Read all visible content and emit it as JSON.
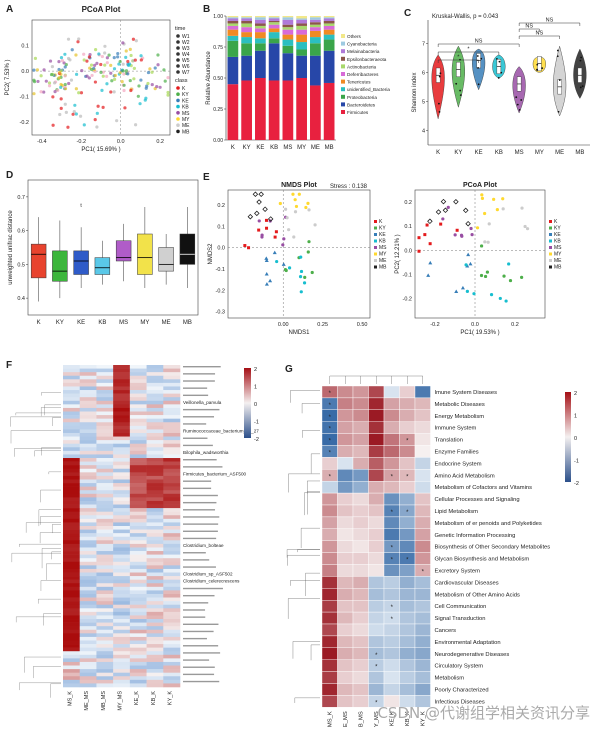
{
  "figure": {
    "watermark": "CSDN @代谢组学相关资讯分享"
  },
  "panel_labels": {
    "a": "A",
    "b": "B",
    "c": "C",
    "d": "D",
    "e": "E",
    "f": "F",
    "g": "G"
  },
  "colors": {
    "K": "#e41a1c",
    "KY": "#4daf4a",
    "KE": "#377eb8",
    "KB": "#17becf",
    "MS": "#984ea3",
    "MY": "#ffd92f",
    "ME": "#cccccc",
    "MB": "#222222"
  },
  "chart_data": [
    {
      "id": "A",
      "type": "scatter",
      "title": "PCoA Plot",
      "xlabel": "PC1( 15.69% )",
      "ylabel": "PC2( 7.53% )",
      "xlim": [
        -0.45,
        0.25
      ],
      "ylim": [
        -0.25,
        0.2
      ],
      "xticks": [
        "-0.4",
        "-0.2",
        "0.0",
        "0.2"
      ],
      "yticks": [
        "0.1",
        "0.0",
        "-0.1",
        "-0.2"
      ],
      "legend_time_title": "time",
      "legend_time": [
        "W1",
        "W2",
        "W3",
        "W4",
        "W5",
        "W6",
        "W7"
      ],
      "legend_class_title": "class",
      "legend_class": [
        "K",
        "KY",
        "KE",
        "KB",
        "MS",
        "MY",
        "ME",
        "MB"
      ]
    },
    {
      "id": "B",
      "type": "bar",
      "ylabel": "Relative Abundance",
      "categories": [
        "K",
        "KY",
        "KE",
        "KB",
        "MS",
        "MY",
        "ME",
        "MB"
      ],
      "yticks": [
        "0.00",
        "0.25",
        "0.50",
        "0.75",
        "1.00"
      ],
      "series": [
        {
          "name": "Firmicutes",
          "color": "#e8213f",
          "values": [
            0.45,
            0.48,
            0.5,
            0.48,
            0.48,
            0.5,
            0.44,
            0.46
          ]
        },
        {
          "name": "Bacteroidetes",
          "color": "#2747a8",
          "values": [
            0.22,
            0.2,
            0.22,
            0.3,
            0.22,
            0.18,
            0.24,
            0.26
          ]
        },
        {
          "name": "Proteobacteria",
          "color": "#3aa54a",
          "values": [
            0.13,
            0.1,
            0.06,
            0.04,
            0.06,
            0.05,
            0.1,
            0.09
          ]
        },
        {
          "name": "unidentified_Bacteria",
          "color": "#2bbfc0",
          "values": [
            0.04,
            0.05,
            0.04,
            0.05,
            0.05,
            0.06,
            0.05,
            0.04
          ]
        },
        {
          "name": "Tenericutes",
          "color": "#f08a24",
          "values": [
            0.05,
            0.04,
            0.05,
            0.03,
            0.04,
            0.06,
            0.05,
            0.04
          ]
        },
        {
          "name": "Deferribacteres",
          "color": "#d86bd8",
          "values": [
            0.03,
            0.04,
            0.03,
            0.03,
            0.04,
            0.04,
            0.03,
            0.03
          ]
        },
        {
          "name": "Actinobacteria",
          "color": "#a8d86b",
          "values": [
            0.02,
            0.03,
            0.02,
            0.02,
            0.02,
            0.03,
            0.02,
            0.02
          ]
        },
        {
          "name": "Epsilonbacteraeota",
          "color": "#8c564b",
          "values": [
            0.02,
            0.02,
            0.02,
            0.01,
            0.02,
            0.02,
            0.02,
            0.02
          ]
        },
        {
          "name": "Melainabacteria",
          "color": "#b07ad8",
          "values": [
            0.02,
            0.02,
            0.03,
            0.02,
            0.04,
            0.03,
            0.02,
            0.02
          ]
        },
        {
          "name": "Cyanobacteria",
          "color": "#9ecae1",
          "values": [
            0.01,
            0.01,
            0.02,
            0.01,
            0.02,
            0.01,
            0.02,
            0.01
          ]
        },
        {
          "name": "Others",
          "color": "#f2e88a",
          "values": [
            0.01,
            0.01,
            0.01,
            0.01,
            0.01,
            0.02,
            0.01,
            0.01
          ]
        }
      ],
      "legend_order": [
        "Others",
        "Cyanobacteria",
        "Melainabacteria",
        "Epsilonbacteraeota",
        "Actinobacteria",
        "Deferribacteres",
        "Tenericutes",
        "unidentified_Bacteria",
        "Proteobacteria",
        "Bacteroidetes",
        "Firmicutes"
      ]
    },
    {
      "id": "C",
      "type": "violin",
      "title": "Kruskal-Wallis, p = 0.043",
      "ylabel": "Shannon index",
      "categories": [
        "K",
        "KY",
        "KE",
        "KB",
        "MS",
        "MY",
        "ME",
        "MB"
      ],
      "yticks": [
        "4",
        "5",
        "6",
        "7"
      ],
      "ylim": [
        3.5,
        7.8
      ],
      "medians": [
        5.9,
        6.1,
        6.4,
        6.2,
        5.6,
        6.3,
        5.5,
        5.9
      ],
      "spread": [
        [
          4.4,
          6.6
        ],
        [
          4.8,
          6.9
        ],
        [
          5.4,
          6.8
        ],
        [
          5.8,
          6.6
        ],
        [
          4.6,
          6.2
        ],
        [
          6.0,
          6.5
        ],
        [
          4.5,
          6.9
        ],
        [
          5.1,
          6.8
        ]
      ],
      "significance": [
        {
          "from": "K",
          "to": "MS",
          "label": "NS"
        },
        {
          "from": "K",
          "to": "KB",
          "label": "*"
        },
        {
          "from": "K",
          "to": "KE",
          "label": "*"
        },
        {
          "from": "MS",
          "to": "ME",
          "label": "NS"
        },
        {
          "from": "MS",
          "to": "MY",
          "label": "NS"
        },
        {
          "from": "MS",
          "to": "MB",
          "label": "NS"
        }
      ]
    },
    {
      "id": "D",
      "type": "box",
      "ylabel": "unweighted unifrac distance",
      "categories": [
        "K",
        "KY",
        "KE",
        "KB",
        "MS",
        "MY",
        "ME",
        "MB"
      ],
      "yticks": [
        "0.4",
        "0.5",
        "0.6",
        "0.7"
      ],
      "ylim": [
        0.35,
        0.75
      ],
      "boxes": [
        {
          "min": 0.39,
          "q1": 0.46,
          "median": 0.53,
          "q3": 0.56,
          "max": 0.64
        },
        {
          "min": 0.4,
          "q1": 0.45,
          "median": 0.48,
          "q3": 0.54,
          "max": 0.63
        },
        {
          "min": 0.43,
          "q1": 0.47,
          "median": 0.51,
          "q3": 0.54,
          "max": 0.61
        },
        {
          "min": 0.44,
          "q1": 0.47,
          "median": 0.49,
          "q3": 0.52,
          "max": 0.57
        },
        {
          "min": 0.45,
          "q1": 0.51,
          "median": 0.52,
          "q3": 0.57,
          "max": 0.62
        },
        {
          "min": 0.43,
          "q1": 0.47,
          "median": 0.52,
          "q3": 0.59,
          "max": 0.67
        },
        {
          "min": 0.44,
          "q1": 0.48,
          "median": 0.5,
          "q3": 0.55,
          "max": 0.59
        },
        {
          "min": 0.43,
          "q1": 0.5,
          "median": 0.53,
          "q3": 0.59,
          "max": 0.67
        }
      ],
      "outlier_label": "t"
    },
    {
      "id": "E1",
      "type": "scatter",
      "title": "NMDS Plot",
      "stress": "Stress : 0.138",
      "xlabel": "NMDS1",
      "ylabel": "NMDS2",
      "xticks": [
        "0.00",
        "0.25",
        "0.50"
      ],
      "yticks": [
        "0.2",
        "0.1",
        "0.0",
        "-0.1",
        "-0.2",
        "-0.3"
      ],
      "xlim": [
        -0.35,
        0.55
      ],
      "ylim": [
        -0.33,
        0.27
      ],
      "legend": [
        "K",
        "KY",
        "KE",
        "KB",
        "MS",
        "MY",
        "ME",
        "MB"
      ]
    },
    {
      "id": "E2",
      "type": "scatter",
      "title": "PCoA Plot",
      "xlabel": "PC1( 19.53% )",
      "ylabel": "PC2( 12.21% )",
      "xticks": [
        "-0.2",
        "0.0",
        "0.2"
      ],
      "yticks": [
        "0.2",
        "0.1",
        "0.0",
        "-0.1",
        "-0.2"
      ],
      "xlim": [
        -0.3,
        0.35
      ],
      "ylim": [
        -0.28,
        0.25
      ],
      "legend": [
        "K",
        "KY",
        "KE",
        "KB",
        "MS",
        "MY",
        "ME",
        "MB"
      ]
    },
    {
      "id": "F",
      "type": "heatmap",
      "columns": [
        "MS_K",
        "ME_MS",
        "MB_MS",
        "MY_MS",
        "KE_K",
        "KB_K",
        "KY_K"
      ],
      "scale_ticks": [
        "2",
        "1",
        "0",
        "-1",
        "-2"
      ],
      "highlighted_rows": [
        "Veillonella_parvula",
        "Ruminococcaceae_bacterium_42_27",
        "Bilophila_wadsworthia",
        "Firmicutes_bacterium_ASF500",
        "Clostridium_bolteae",
        "Clostridium_sp_ASF502",
        "Clostridium_celerecrescens",
        "Bacteroides_sp_UW/93/curated"
      ]
    },
    {
      "id": "G",
      "type": "heatmap",
      "columns": [
        "MS_K",
        "ME_MS",
        "MB_MS",
        "MY_MS",
        "KE_K",
        "KB_K",
        "KY_K"
      ],
      "scale_ticks": [
        "2",
        "1",
        "0",
        "-1",
        "-2"
      ],
      "rows": [
        "Imune System Diseases",
        "Metabolic Diseases",
        "Energy Metabolism",
        "Immune System",
        "Translation",
        "Enzyme Families",
        "Endocrine System",
        "Amino Acid Metabolism",
        "Metabolism of Cofactors and Vitamins",
        "Cellular Processes and Signaling",
        "Lipid Metabolism",
        "Metabolism of er penoids and Polyketides",
        "Genetic Information Processing",
        "Biosynthesis of Other Secondary Metabolites",
        "Glycan Biosynthesis and Metabolism",
        "Excretory System",
        "Cardiovascular Diseases",
        "Metabolism of Other Amino Acids",
        "Cell Communication",
        "Signal Transduction",
        "Cancers",
        "Environmental Adaptation",
        "Neurodegenerative Diseases",
        "Circulatory System",
        "Metabolism",
        "Poorly Characterized",
        "Infectious Diseases"
      ],
      "values": [
        [
          1.2,
          0.9,
          0.8,
          1.5,
          -0.2,
          0.3,
          -1.6
        ],
        [
          -1.6,
          1.0,
          0.9,
          1.8,
          0.7,
          0.6,
          0.5
        ],
        [
          -1.8,
          0.8,
          0.9,
          1.9,
          0.9,
          0.6,
          0.4
        ],
        [
          -1.7,
          0.7,
          0.6,
          1.7,
          0.6,
          0.3,
          0.2
        ],
        [
          -1.8,
          0.8,
          0.7,
          1.9,
          1.1,
          0.8,
          0.1
        ],
        [
          -1.5,
          0.6,
          0.5,
          1.6,
          1.2,
          0.9,
          0.0
        ],
        [
          0.3,
          -0.2,
          0.6,
          1.3,
          0.8,
          0.4,
          -0.4
        ],
        [
          0.6,
          -1.4,
          -1.2,
          1.5,
          0.7,
          0.5,
          -0.2
        ],
        [
          -0.4,
          -1.2,
          -0.9,
          0.6,
          0.5,
          0.3,
          -0.3
        ],
        [
          0.8,
          0.3,
          0.2,
          0.6,
          -1.3,
          -0.9,
          0.4
        ],
        [
          0.9,
          0.4,
          0.3,
          0.4,
          -1.5,
          -1.0,
          0.5
        ],
        [
          0.7,
          0.2,
          0.3,
          0.2,
          -1.4,
          -0.9,
          0.6
        ],
        [
          0.6,
          0.1,
          0.2,
          0.3,
          -1.6,
          -1.2,
          0.7
        ],
        [
          0.8,
          0.2,
          0.1,
          0.3,
          -1.2,
          -1.4,
          0.9
        ],
        [
          0.9,
          0.3,
          0.3,
          0.2,
          -1.5,
          -1.6,
          0.8
        ],
        [
          1.0,
          0.2,
          0.2,
          0.1,
          -1.3,
          -1.1,
          0.6
        ],
        [
          1.7,
          0.5,
          0.6,
          -0.6,
          -0.5,
          -0.9,
          -0.7
        ],
        [
          1.8,
          0.6,
          0.5,
          -0.7,
          -0.6,
          -0.8,
          -0.8
        ],
        [
          1.6,
          0.4,
          0.4,
          -0.5,
          -0.4,
          -0.7,
          -0.6
        ],
        [
          1.7,
          0.5,
          0.3,
          -0.4,
          -0.3,
          -0.6,
          -0.7
        ],
        [
          1.5,
          0.3,
          0.2,
          -0.3,
          -0.4,
          -0.6,
          -0.8
        ],
        [
          1.8,
          0.5,
          0.4,
          -0.6,
          -0.5,
          -0.7,
          -0.9
        ],
        [
          1.9,
          0.6,
          0.5,
          -0.7,
          -0.6,
          -0.9,
          -1.0
        ],
        [
          1.7,
          0.4,
          0.3,
          -0.5,
          -0.3,
          -0.6,
          -0.8
        ],
        [
          1.6,
          0.3,
          0.2,
          -0.6,
          -0.2,
          -0.5,
          -0.7
        ],
        [
          1.8,
          0.5,
          0.4,
          -0.8,
          -0.4,
          -0.7,
          -1.0
        ],
        [
          1.5,
          0.4,
          0.3,
          -0.4,
          0.1,
          -0.3,
          -0.6
        ]
      ],
      "stars": [
        [
          0,
          0
        ],
        [
          1,
          0
        ],
        [
          2,
          0
        ],
        [
          3,
          0
        ],
        [
          4,
          0
        ],
        [
          5,
          0
        ],
        [
          4,
          5
        ],
        [
          7,
          0
        ],
        [
          7,
          4
        ],
        [
          7,
          5
        ],
        [
          10,
          5
        ],
        [
          10,
          4
        ],
        [
          13,
          4
        ],
        [
          14,
          4
        ],
        [
          14,
          5
        ],
        [
          15,
          6
        ],
        [
          18,
          4
        ],
        [
          19,
          4
        ],
        [
          22,
          3
        ],
        [
          23,
          3
        ],
        [
          26,
          3
        ]
      ]
    }
  ]
}
